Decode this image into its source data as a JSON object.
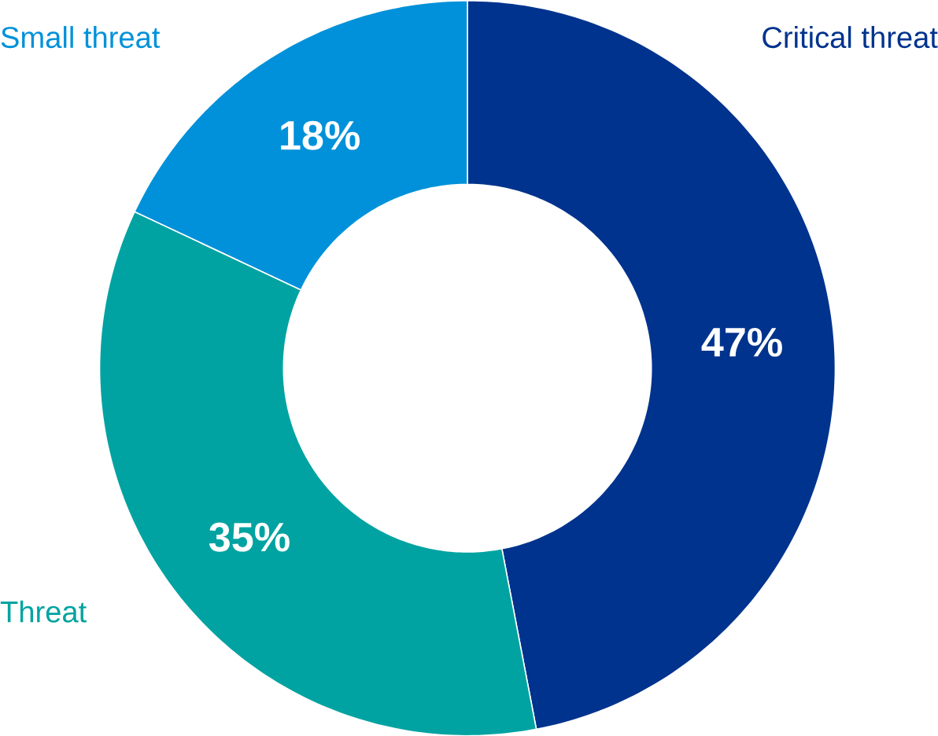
{
  "chart_data": {
    "type": "donut",
    "categories": [
      "Critical threat",
      "Threat",
      "Small threat"
    ],
    "values": [
      47,
      35,
      18
    ],
    "colors": [
      "#00338d",
      "#00a3a1",
      "#0091da"
    ],
    "value_labels": [
      "47%",
      "35%",
      "18%"
    ]
  }
}
